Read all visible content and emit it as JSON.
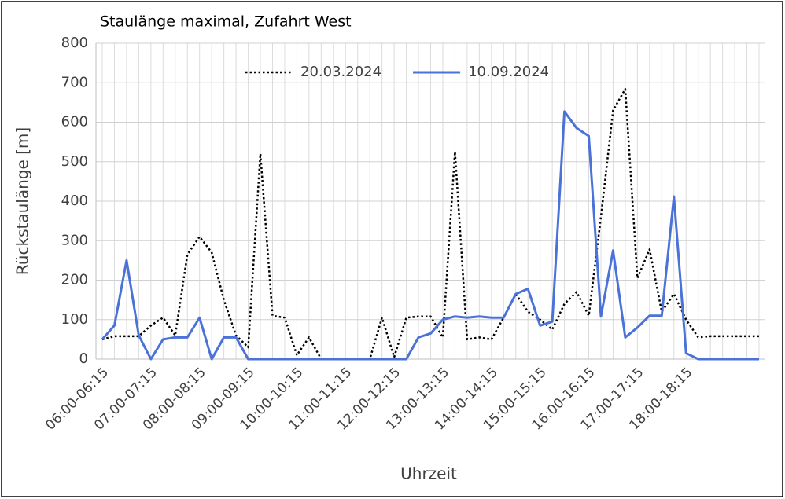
{
  "chart_data": {
    "type": "line",
    "title": "Staulänge maximal, Zufahrt West",
    "x_label": "Uhrzeit",
    "y_label": "Rückstaulänge [m]",
    "categories": [
      "06:00-06:15",
      null,
      null,
      null,
      "07:00-07:15",
      null,
      null,
      null,
      "08:00-08:15",
      null,
      null,
      null,
      "09:00-09:15",
      null,
      null,
      null,
      "10:00-10:15",
      null,
      null,
      null,
      "11:00-11:15",
      null,
      null,
      null,
      "12:00-12:15",
      null,
      null,
      null,
      "13:00-13:15",
      null,
      null,
      null,
      "14:00-14:15",
      null,
      null,
      null,
      "15:00-15:15",
      null,
      null,
      null,
      "16:00-16:15",
      null,
      null,
      null,
      "17:00-17:15",
      null,
      null,
      null,
      "18:00-18:15",
      null,
      null,
      null,
      null,
      null,
      null
    ],
    "series": [
      {
        "name": "20.03.2024",
        "color": "#000000",
        "dash": "dotted",
        "values": [
          50,
          58,
          58,
          58,
          85,
          105,
          60,
          265,
          310,
          270,
          150,
          60,
          30,
          520,
          110,
          105,
          10,
          55,
          0,
          0,
          0,
          0,
          0,
          105,
          5,
          105,
          108,
          108,
          55,
          525,
          50,
          55,
          50,
          105,
          165,
          120,
          100,
          75,
          140,
          170,
          110,
          360,
          630,
          684,
          205,
          278,
          120,
          165,
          100,
          55,
          58,
          58,
          58,
          58,
          58
        ]
      },
      {
        "name": "10.09.2024",
        "color": "#4a72d8",
        "dash": "solid",
        "values": [
          50,
          85,
          250,
          60,
          0,
          50,
          55,
          55,
          105,
          0,
          55,
          55,
          0,
          0,
          0,
          0,
          0,
          0,
          0,
          0,
          0,
          0,
          0,
          0,
          0,
          0,
          55,
          65,
          100,
          108,
          105,
          108,
          105,
          105,
          165,
          178,
          85,
          95,
          627,
          585,
          565,
          108,
          275,
          55,
          80,
          110,
          110,
          412,
          15,
          0,
          0,
          0,
          0,
          0,
          0
        ]
      }
    ],
    "ylim": [
      0,
      800
    ],
    "yticks": [
      0,
      100,
      200,
      300,
      400,
      500,
      600,
      700,
      800
    ],
    "grid": true,
    "legend": "top"
  }
}
